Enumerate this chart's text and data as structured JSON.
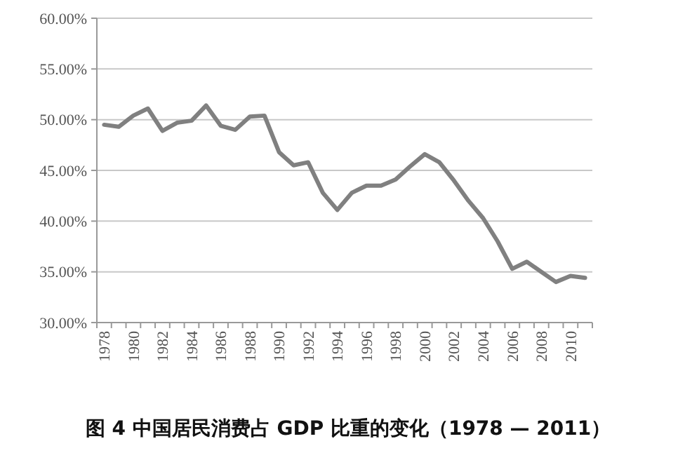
{
  "chart_data": {
    "type": "line",
    "title": "图 4 中国居民消费占 GDP 比重的变化（1978 — 2011）",
    "categories": [
      "1978",
      null,
      "1980",
      null,
      "1982",
      null,
      "1984",
      null,
      "1986",
      null,
      "1988",
      null,
      "1990",
      null,
      "1992",
      null,
      "1994",
      null,
      "1996",
      null,
      "1998",
      null,
      "2000",
      null,
      "2002",
      null,
      "2004",
      null,
      "2006",
      null,
      "2008",
      null,
      "2010",
      null
    ],
    "series": [
      {
        "color": "#808080",
        "values": [
          49.5,
          49.3,
          50.4,
          51.1,
          48.9,
          49.7,
          49.9,
          51.4,
          49.4,
          49.0,
          50.3,
          50.4,
          46.8,
          45.5,
          45.8,
          42.8,
          41.1,
          42.8,
          43.5,
          43.5,
          44.1,
          45.4,
          46.6,
          45.8,
          44.0,
          42.0,
          40.3,
          38.0,
          35.3,
          36.0,
          35.0,
          34.0,
          34.6,
          34.4
        ]
      }
    ],
    "ylim": [
      30,
      60
    ],
    "yticks": [
      {
        "value": 30,
        "label": "30.00%"
      },
      {
        "value": 35,
        "label": "35.00%"
      },
      {
        "value": 40,
        "label": "40.00%"
      },
      {
        "value": 45,
        "label": "45.00%"
      },
      {
        "value": 50,
        "label": "50.00%"
      },
      {
        "value": 55,
        "label": "55.00%"
      },
      {
        "value": 60,
        "label": "60.00%"
      }
    ],
    "grid": "y",
    "marker": "none",
    "line_style": "solid"
  }
}
